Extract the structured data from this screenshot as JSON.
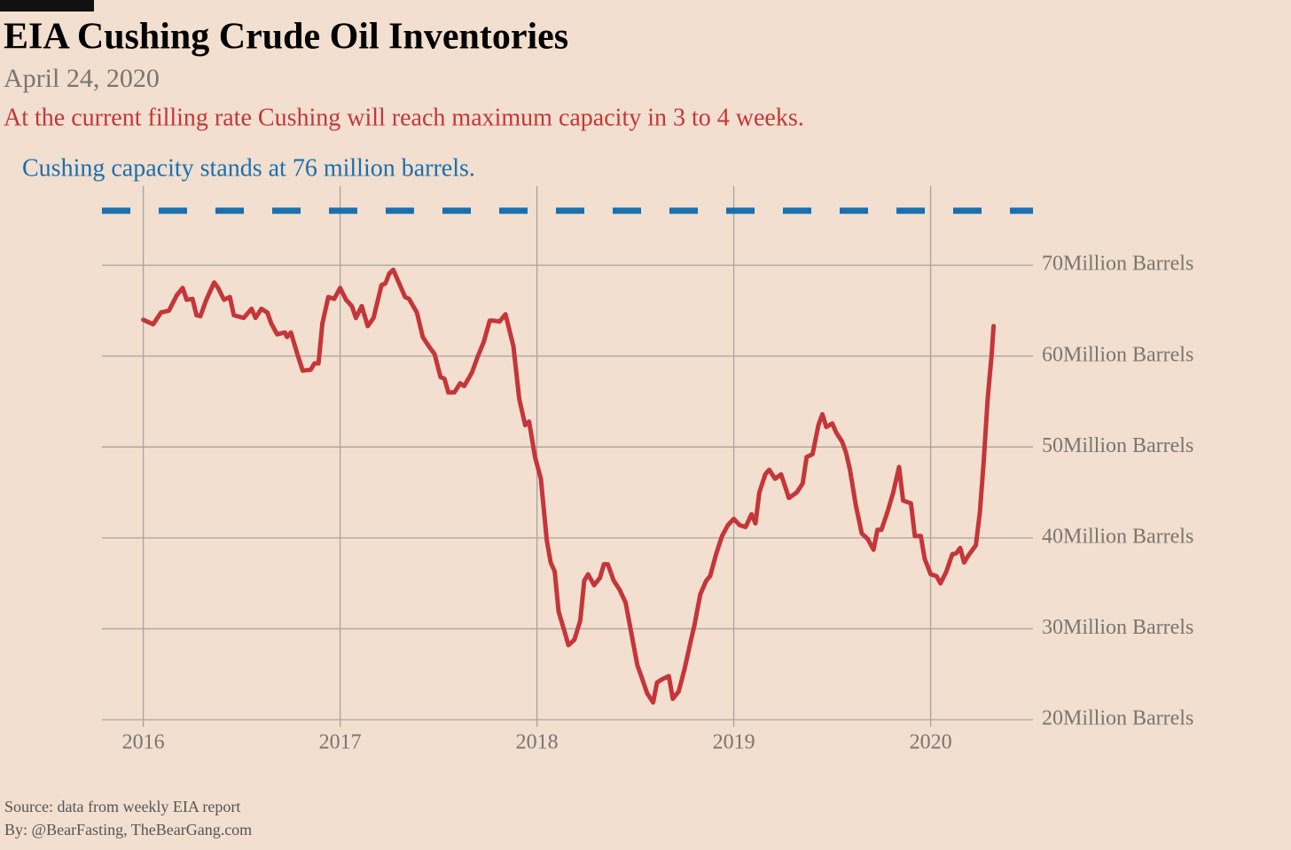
{
  "chart_data": {
    "type": "line",
    "title": "EIA Cushing Crude Oil Inventories",
    "subtitle": "April 24, 2020",
    "note": "At the current filling rate Cushing will reach maximum capacity in 3 to 4 weeks.",
    "capacity": 76,
    "capacity_label": "Cushing capacity stands at 76 million barrels.",
    "source": "Source: data from  weekly EIA report",
    "byline": "By: @BearFasting, TheBearGang.com",
    "color": "#c4363a",
    "capacity_color": "#1a6faf",
    "grid": true,
    "x": [
      2016,
      2016.05,
      2016.09,
      2016.13,
      2016.17,
      2016.2,
      2016.22,
      2016.25,
      2016.27,
      2016.29,
      2016.32,
      2016.36,
      2016.38,
      2016.41,
      2016.44,
      2016.46,
      2016.51,
      2016.55,
      2016.57,
      2016.6,
      2016.63,
      2016.65,
      2016.68,
      2016.72,
      2016.73,
      2016.75,
      2016.78,
      2016.81,
      2016.85,
      2016.87,
      2016.89,
      2016.91,
      2016.94,
      2016.97,
      2017,
      2017.03,
      2017.06,
      2017.08,
      2017.11,
      2017.14,
      2017.17,
      2017.19,
      2017.21,
      2017.23,
      2017.25,
      2017.27,
      2017.3,
      2017.33,
      2017.35,
      2017.39,
      2017.42,
      2017.45,
      2017.48,
      2017.51,
      2017.53,
      2017.55,
      2017.58,
      2017.61,
      2017.63,
      2017.67,
      2017.7,
      2017.73,
      2017.76,
      2017.78,
      2017.81,
      2017.84,
      2017.88,
      2017.91,
      2017.94,
      2017.96,
      2017.99,
      2018.02,
      2018.05,
      2018.07,
      2018.09,
      2018.11,
      2018.14,
      2018.16,
      2018.19,
      2018.22,
      2018.24,
      2018.26,
      2018.29,
      2018.32,
      2018.34,
      2018.36,
      2018.39,
      2018.42,
      2018.45,
      2018.48,
      2018.51,
      2018.53,
      2018.56,
      2018.59,
      2018.61,
      2018.64,
      2018.67,
      2018.69,
      2018.72,
      2018.75,
      2018.78,
      2018.8,
      2018.83,
      2018.86,
      2018.88,
      2018.91,
      2018.94,
      2018.97,
      2019,
      2019.03,
      2019.06,
      2019.09,
      2019.11,
      2019.13,
      2019.16,
      2019.18,
      2019.21,
      2019.24,
      2019.26,
      2019.28,
      2019.32,
      2019.35,
      2019.37,
      2019.4,
      2019.43,
      2019.45,
      2019.47,
      2019.5,
      2019.52,
      2019.55,
      2019.57,
      2019.59,
      2019.62,
      2019.65,
      2019.68,
      2019.71,
      2019.73,
      2019.75,
      2019.78,
      2019.81,
      2019.84,
      2019.86,
      2019.9,
      2019.92,
      2019.95,
      2019.97,
      2020,
      2020.03,
      2020.05,
      2020.08,
      2020.11,
      2020.13,
      2020.15,
      2020.17,
      2020.19,
      2020.23,
      2020.25,
      2020.27,
      2020.29,
      2020.31,
      2020.32
    ],
    "values": [
      64.0,
      63.5,
      64.8,
      65.0,
      66.7,
      67.5,
      66.2,
      66.3,
      64.5,
      64.4,
      66.2,
      68.1,
      67.5,
      66.2,
      66.5,
      64.5,
      64.2,
      65.2,
      64.2,
      65.2,
      64.8,
      63.6,
      62.4,
      62.6,
      62.1,
      62.6,
      60.4,
      58.4,
      58.5,
      59.2,
      59.2,
      63.6,
      66.5,
      66.3,
      67.5,
      66.2,
      65.5,
      64.2,
      65.5,
      63.3,
      64.2,
      66.0,
      67.8,
      68.0,
      69.1,
      69.5,
      68.0,
      66.5,
      66.3,
      64.8,
      62.1,
      61.1,
      60.2,
      57.7,
      57.5,
      56.0,
      56.0,
      57.0,
      56.7,
      58.2,
      60.0,
      61.6,
      63.9,
      63.9,
      63.8,
      64.6,
      61.1,
      55.3,
      52.4,
      52.8,
      48.9,
      46.5,
      39.7,
      37.3,
      36.3,
      31.9,
      29.7,
      28.2,
      28.8,
      30.9,
      35.3,
      36.0,
      34.8,
      35.6,
      37.1,
      37.1,
      35.3,
      34.3,
      32.9,
      29.5,
      26.0,
      24.8,
      22.9,
      21.9,
      24.1,
      24.5,
      24.8,
      22.3,
      23.1,
      25.6,
      28.5,
      30.4,
      33.8,
      35.3,
      35.8,
      38.2,
      40.2,
      41.4,
      42.1,
      41.4,
      41.2,
      42.6,
      41.6,
      45.0,
      47.0,
      47.5,
      46.5,
      47.0,
      45.7,
      44.4,
      45.0,
      46.0,
      48.9,
      49.2,
      52.4,
      53.6,
      52.2,
      52.6,
      51.6,
      50.6,
      49.4,
      47.5,
      43.6,
      40.5,
      39.9,
      38.7,
      40.9,
      40.9,
      42.8,
      45.0,
      47.8,
      44.1,
      43.8,
      40.2,
      40.2,
      37.7,
      36.0,
      35.8,
      35.0,
      36.3,
      38.2,
      38.3,
      38.9,
      37.3,
      38.0,
      39.2,
      42.8,
      48.5,
      55.3,
      60.2,
      63.3
    ],
    "xlim": [
      2015.79,
      2020.52
    ],
    "xticks": [
      2016,
      2017,
      2018,
      2019,
      2020
    ],
    "ylim": [
      20,
      78.7
    ],
    "yticks": [
      {
        "value": 20,
        "label": "20Million Barrels"
      },
      {
        "value": 30,
        "label": "30Million Barrels"
      },
      {
        "value": 40,
        "label": "40Million Barrels"
      },
      {
        "value": 50,
        "label": "50Million Barrels"
      },
      {
        "value": 60,
        "label": "60Million Barrels"
      },
      {
        "value": 70,
        "label": "70Million Barrels"
      }
    ]
  }
}
